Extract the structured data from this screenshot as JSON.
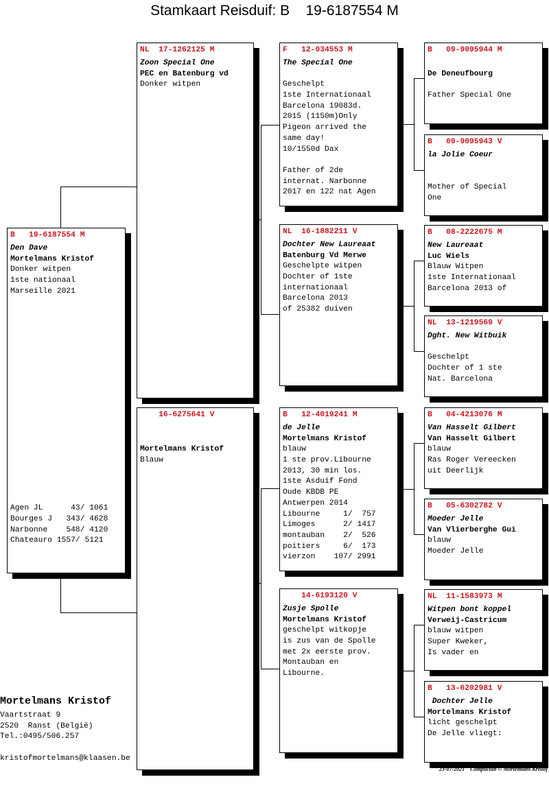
{
  "title": "Stamkaart Reisduif: B    19-6187554 M",
  "subject": {
    "ring": "B   19-6187554 M",
    "name": "Den Dave",
    "owner": "Mortelmans Kristof",
    "lines": [
      "Donker witpen",
      "1ste nationaal",
      "Marseille 2021"
    ],
    "results": [
      "Agen JL      43/ 1061",
      "Bourges J   343/ 4628",
      "Narbonne    548/ 4120",
      "Chateauro 1557/ 5121"
    ]
  },
  "parents": [
    {
      "ring": "NL  17-1262125 M",
      "name": "Zoon Special One",
      "owner": "PEC en Batenburg vd",
      "lines": [
        "Donker witpen"
      ]
    },
    {
      "ring": "    16-6275641 V",
      "name": "",
      "owner": "Mortelmans Kristof",
      "lines": [
        "Blauw"
      ],
      "blank_before_owner": true
    }
  ],
  "grandparents": [
    {
      "ring": "F   12-034553 M",
      "name": "The Special One",
      "owner": "",
      "lines": [
        "Geschelpt",
        "1ste Internationaal",
        "Barcelona 19083d.",
        "2015 (1150m)Only",
        "Pigeon arrived the",
        "same day!",
        "10/1550d Dax",
        "",
        "Father of 2de",
        "internat. Narbonne",
        "2017 en 122 nat Agen"
      ]
    },
    {
      "ring": "NL  16-1882211 V",
      "name": "Dochter New Laureaat",
      "owner": "Batenburg Vd Merwe",
      "lines": [
        "Geschelpte witpen",
        "Dochter of 1ste",
        "internationaal",
        "Barcelona 2013",
        "of 25382 duiven"
      ]
    },
    {
      "ring": "B   12-4019241 M",
      "name": "de Jelle",
      "owner": "Mortelmans Kristof",
      "lines": [
        "blauw",
        "1 ste prov.Libourne",
        "2013, 30 min los.",
        "1ste Asduif Fond",
        "Oude KBDB PE",
        "Antwerpen 2014",
        "Libourne     1/  757",
        "Limoges      2/ 1417",
        "montauban    2/  526",
        "poitiers     6/  173",
        "vierzon    107/ 2991"
      ]
    },
    {
      "ring": "    14-6193120 V",
      "name": "Zusje Spolle",
      "owner": "Mortelmans Kristof",
      "lines": [
        "geschelpt witkopje",
        "is zus van de Spolle",
        "met 2x eerste prov.",
        "Montauban en",
        "Libourne."
      ]
    }
  ],
  "great_grandparents": [
    {
      "ring": "B   09-9095944 M",
      "name": "",
      "owner": "De Deneufbourg",
      "lines": [
        "",
        "Father Special One"
      ]
    },
    {
      "ring": "B   09-9095943 V",
      "name": "la Jolie Coeur",
      "owner": "",
      "lines": [
        "",
        "Mother of Special",
        "One"
      ]
    },
    {
      "ring": "B   08-2222675 M",
      "name": "New Laureaat",
      "owner": "Luc Wiels",
      "lines": [
        "Blauw Witpen",
        "1ste Internationaal",
        "Barcelona 2013 of"
      ]
    },
    {
      "ring": "NL  13-1219569 V",
      "name": "Dght. New Witbuik",
      "owner": "",
      "lines": [
        "Geschelpt",
        "Dochter of 1 ste",
        "Nat. Barcelona"
      ]
    },
    {
      "ring": "B   04-4213076 M",
      "name": "Van Hasselt Gilbert",
      "owner": "Van Hasselt Gilbert",
      "lines": [
        "blauw",
        "Ras Roger Vereecken",
        "uit Deerlijk"
      ]
    },
    {
      "ring": "B   05-6302782 V",
      "name": "Moeder Jelle",
      "owner": "Van Vlierberghe Gui",
      "lines": [
        "blauw",
        "Moeder Jelle"
      ]
    },
    {
      "ring": "NL  11-1583973 M",
      "name": "Witpen bont koppel",
      "owner": "Verweij-Castricum",
      "lines": [
        "blauw witpen",
        "Super Kweker,",
        "Is vader en"
      ]
    },
    {
      "ring": "B   13-6202981 V",
      "name": " Dochter Jelle",
      "owner": "Mortelmans Kristof",
      "lines": [
        "licht geschelpt",
        "De Jelle vliegt:"
      ]
    }
  ],
  "footer": {
    "breeder": "Mortelmans Kristof",
    "address": [
      "Vaartstraat 9",
      "2520  Ranst (België)",
      "Tel.:0495/506.257",
      "",
      "kristofmortelmans@klaasen.be"
    ],
    "date": "23-07-2021",
    "credit": "Compuclub © Mortelmans Kristof"
  },
  "colors": {
    "ring": "#c8171e",
    "text": "#000000",
    "shadow": "#000000"
  }
}
